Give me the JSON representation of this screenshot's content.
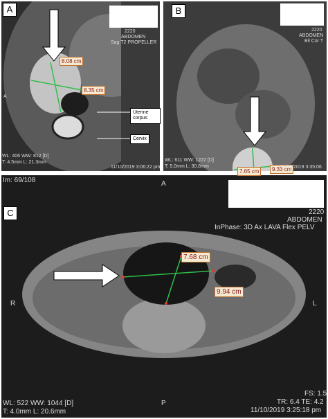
{
  "panels": [
    {
      "label": "A",
      "measurements": [
        "8.08 cm",
        "8.35 cm"
      ],
      "annotations": [
        "Uterine corpus",
        "Cervix"
      ],
      "overlay": [
        "2220",
        "ABDOMEN",
        "Sag T2 PROPELLER",
        "A",
        "WL: 406 WW: 812 [D]",
        "T: 4.5mm L: 21.3mm",
        "11/10/2019 3:06:22 pm"
      ]
    },
    {
      "label": "B",
      "measurements": [
        "9.33 cm",
        "7.65 cm"
      ],
      "overlay": [
        "2220",
        "ABDOMEN",
        "Bil Cor T",
        "WL: 611 WW: 1222 [D]",
        "T: 5.0mm L: 30.8mm",
        "11/10/2019 3:35:06"
      ]
    },
    {
      "label": "C",
      "measurements": [
        "7.68 cm",
        "9.94 cm"
      ],
      "overlay": [
        "Im: 69/108",
        "2220",
        "ABDOMEN",
        "InPhase: 3D Ax LAVA Flex PELV",
        "A",
        "R",
        "L",
        "P",
        "WL: 522 WW: 1044 [D]",
        "T: 4.0mm L: 20.6mm",
        "FS: 1.5",
        "TR: 6.4 TE: 4.2",
        "11/10/2019 3:25:18 pm"
      ]
    }
  ]
}
